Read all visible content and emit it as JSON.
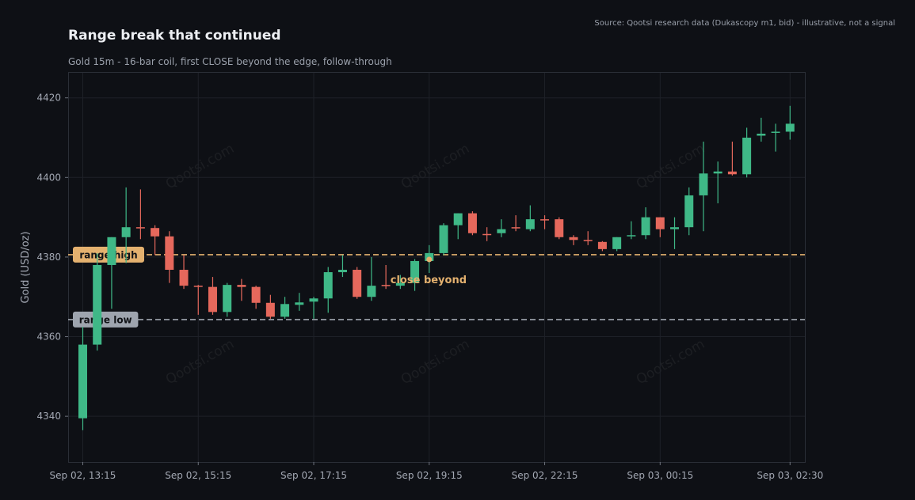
{
  "header": {
    "title": "Range break that continued",
    "subtitle": "Gold 15m - 16-bar coil, first CLOSE beyond the edge, follow-through",
    "source": "Source: Qootsi research data (Dukascopy m1, bid) - illustrative, not a signal"
  },
  "watermark": "Qootsi.com",
  "colors": {
    "background": "#0e1015",
    "up": "#3fb887",
    "down": "#e5685c",
    "range_high": "#e4b16f",
    "range_low": "#9ea4ae",
    "marker": "#e4b16f"
  },
  "chart_data": {
    "type": "candlestick",
    "title": "Range break that continued",
    "subtitle": "Gold 15m - 16-bar coil, first CLOSE beyond the edge, follow-through",
    "ylabel": "Gold (USD/oz)",
    "xlabel": "",
    "ylim": [
      4328.5,
      4426.5
    ],
    "yticks": [
      4340,
      4360,
      4380,
      4400,
      4420
    ],
    "xticks": [
      {
        "index": 0,
        "label": "Sep 02, 13:15"
      },
      {
        "index": 8,
        "label": "Sep 02, 15:15"
      },
      {
        "index": 16,
        "label": "Sep 02, 17:15"
      },
      {
        "index": 24,
        "label": "Sep 02, 19:15"
      },
      {
        "index": 32,
        "label": "Sep 02, 22:15"
      },
      {
        "index": 40,
        "label": "Sep 03, 00:15"
      },
      {
        "index": 49,
        "label": "Sep 03, 02:30"
      }
    ],
    "grid": true,
    "levels": [
      {
        "label": "range high",
        "value": 4380.6,
        "style": "dashed"
      },
      {
        "label": "range low",
        "value": 4364.3,
        "style": "dashed"
      }
    ],
    "annotations": [
      {
        "text": "close beyond",
        "index": 24,
        "value": 4379.4
      }
    ],
    "candles": [
      {
        "o": 4339.5,
        "h": 4362.5,
        "l": 4336.5,
        "c": 4358.0
      },
      {
        "o": 4358.0,
        "h": 4381.0,
        "l": 4356.5,
        "c": 4378.0
      },
      {
        "o": 4378.0,
        "h": 4385.0,
        "l": 4367.0,
        "c": 4385.0
      },
      {
        "o": 4385.0,
        "h": 4397.5,
        "l": 4378.5,
        "c": 4387.5
      },
      {
        "o": 4387.5,
        "h": 4397.0,
        "l": 4384.5,
        "c": 4387.3
      },
      {
        "o": 4387.3,
        "h": 4388.0,
        "l": 4380.5,
        "c": 4385.2
      },
      {
        "o": 4385.2,
        "h": 4386.5,
        "l": 4373.5,
        "c": 4376.8
      },
      {
        "o": 4376.8,
        "h": 4380.5,
        "l": 4372.0,
        "c": 4372.8
      },
      {
        "o": 4372.8,
        "h": 4373.0,
        "l": 4365.5,
        "c": 4372.5
      },
      {
        "o": 4372.5,
        "h": 4375.0,
        "l": 4365.5,
        "c": 4366.2
      },
      {
        "o": 4366.2,
        "h": 4373.5,
        "l": 4365.0,
        "c": 4373.0
      },
      {
        "o": 4373.0,
        "h": 4374.5,
        "l": 4369.0,
        "c": 4372.5
      },
      {
        "o": 4372.5,
        "h": 4372.8,
        "l": 4367.0,
        "c": 4368.5
      },
      {
        "o": 4368.5,
        "h": 4370.5,
        "l": 4364.5,
        "c": 4365.0
      },
      {
        "o": 4365.0,
        "h": 4370.0,
        "l": 4364.5,
        "c": 4368.2
      },
      {
        "o": 4368.0,
        "h": 4371.0,
        "l": 4366.5,
        "c": 4368.6
      },
      {
        "o": 4368.8,
        "h": 4370.0,
        "l": 4364.5,
        "c": 4369.6
      },
      {
        "o": 4369.6,
        "h": 4377.5,
        "l": 4366.0,
        "c": 4376.2
      },
      {
        "o": 4376.2,
        "h": 4380.5,
        "l": 4375.0,
        "c": 4376.8
      },
      {
        "o": 4376.8,
        "h": 4377.5,
        "l": 4369.5,
        "c": 4370.0
      },
      {
        "o": 4370.0,
        "h": 4380.0,
        "l": 4369.0,
        "c": 4372.8
      },
      {
        "o": 4373.0,
        "h": 4378.0,
        "l": 4372.0,
        "c": 4372.8
      },
      {
        "o": 4372.8,
        "h": 4375.5,
        "l": 4372.0,
        "c": 4373.5
      },
      {
        "o": 4373.5,
        "h": 4379.5,
        "l": 4371.5,
        "c": 4379.0
      },
      {
        "o": 4379.0,
        "h": 4383.0,
        "l": 4376.0,
        "c": 4381.0
      },
      {
        "o": 4381.0,
        "h": 4388.5,
        "l": 4380.5,
        "c": 4388.0
      },
      {
        "o": 4388.0,
        "h": 4391.0,
        "l": 4384.5,
        "c": 4391.0
      },
      {
        "o": 4391.0,
        "h": 4391.5,
        "l": 4385.5,
        "c": 4386.0
      },
      {
        "o": 4385.8,
        "h": 4387.5,
        "l": 4384.0,
        "c": 4385.6
      },
      {
        "o": 4386.0,
        "h": 4389.5,
        "l": 4385.0,
        "c": 4387.0
      },
      {
        "o": 4387.5,
        "h": 4390.5,
        "l": 4386.5,
        "c": 4387.2
      },
      {
        "o": 4387.0,
        "h": 4393.0,
        "l": 4386.5,
        "c": 4389.5
      },
      {
        "o": 4389.5,
        "h": 4390.5,
        "l": 4387.0,
        "c": 4389.3
      },
      {
        "o": 4389.5,
        "h": 4390.0,
        "l": 4384.5,
        "c": 4385.0
      },
      {
        "o": 4385.0,
        "h": 4385.5,
        "l": 4383.0,
        "c": 4384.3
      },
      {
        "o": 4384.3,
        "h": 4386.5,
        "l": 4383.0,
        "c": 4384.0
      },
      {
        "o": 4383.8,
        "h": 4384.0,
        "l": 4381.5,
        "c": 4382.0
      },
      {
        "o": 4382.0,
        "h": 4385.0,
        "l": 4381.5,
        "c": 4385.0
      },
      {
        "o": 4385.2,
        "h": 4389.0,
        "l": 4384.5,
        "c": 4385.5
      },
      {
        "o": 4385.5,
        "h": 4392.5,
        "l": 4384.5,
        "c": 4390.0
      },
      {
        "o": 4390.0,
        "h": 4390.0,
        "l": 4385.0,
        "c": 4387.0
      },
      {
        "o": 4387.0,
        "h": 4390.0,
        "l": 4382.0,
        "c": 4387.5
      },
      {
        "o": 4387.5,
        "h": 4397.5,
        "l": 4385.5,
        "c": 4395.5
      },
      {
        "o": 4395.5,
        "h": 4409.0,
        "l": 4386.5,
        "c": 4401.0
      },
      {
        "o": 4401.0,
        "h": 4404.0,
        "l": 4393.5,
        "c": 4401.5
      },
      {
        "o": 4401.5,
        "h": 4409.0,
        "l": 4400.5,
        "c": 4400.8
      },
      {
        "o": 4400.8,
        "h": 4412.5,
        "l": 4400.0,
        "c": 4410.0
      },
      {
        "o": 4410.5,
        "h": 4415.0,
        "l": 4409.0,
        "c": 4411.0
      },
      {
        "o": 4411.3,
        "h": 4413.5,
        "l": 4406.5,
        "c": 4411.5
      },
      {
        "o": 4411.5,
        "h": 4418.0,
        "l": 4409.5,
        "c": 4413.5
      }
    ]
  }
}
